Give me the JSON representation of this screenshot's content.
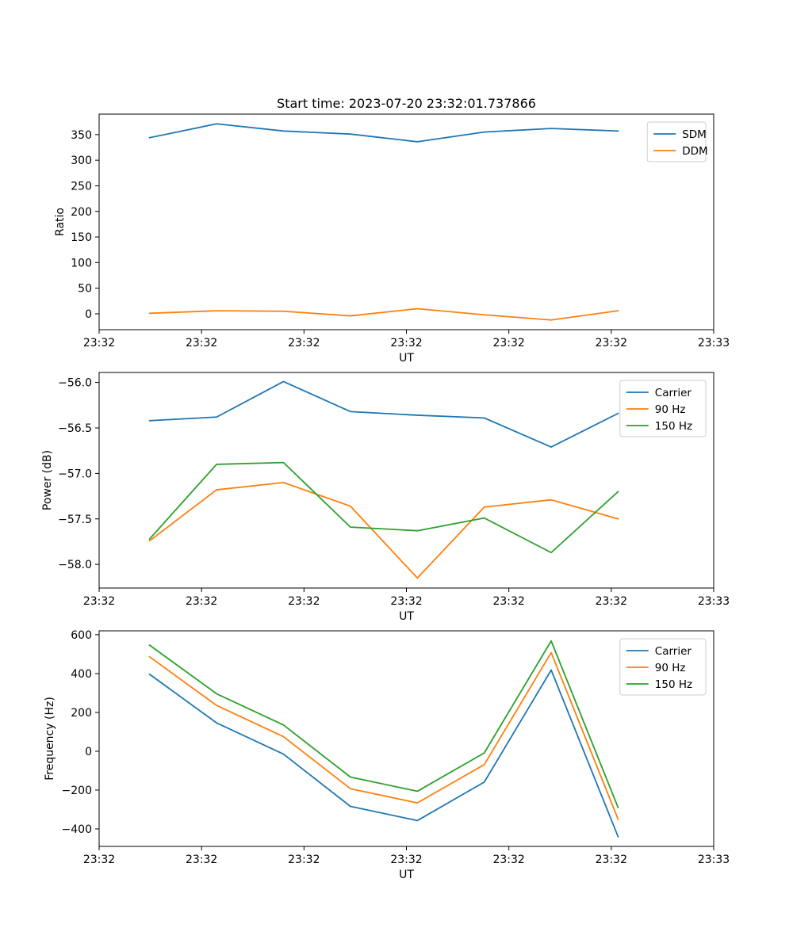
{
  "chart_data": [
    {
      "type": "line",
      "title": "Start time: 2023-07-20 23:32:01.737866",
      "xlabel": "UT",
      "ylabel": "Ratio",
      "xlim": [
        0,
        9
      ],
      "x_ticks": [
        0,
        1.5,
        3,
        4.5,
        6,
        7.5,
        9
      ],
      "x_tick_labels": [
        "23:32",
        "23:32",
        "23:32",
        "23:32",
        "23:32",
        "23:32",
        "23:33"
      ],
      "ylim": [
        -31,
        390
      ],
      "y_ticks": [
        0,
        50,
        100,
        150,
        200,
        250,
        300,
        350
      ],
      "y_tick_labels": [
        "0",
        "50",
        "100",
        "150",
        "200",
        "250",
        "300",
        "350"
      ],
      "x": [
        0.74,
        1.72,
        2.7,
        3.68,
        4.66,
        5.64,
        6.62,
        7.6
      ],
      "series": [
        {
          "name": "SDM",
          "color": "#1f77b4",
          "values": [
            344,
            371,
            357,
            351,
            336,
            355,
            362,
            357
          ]
        },
        {
          "name": "DDM",
          "color": "#ff7f0e",
          "values": [
            1,
            6,
            5,
            -4,
            10,
            -2,
            -12,
            6
          ]
        }
      ],
      "legend": "top-right",
      "grid": false
    },
    {
      "type": "line",
      "title": "",
      "xlabel": "UT",
      "ylabel": "Power (dB)",
      "xlim": [
        0,
        9
      ],
      "x_ticks": [
        0,
        1.5,
        3,
        4.5,
        6,
        7.5,
        9
      ],
      "x_tick_labels": [
        "23:32",
        "23:32",
        "23:32",
        "23:32",
        "23:32",
        "23:32",
        "23:33"
      ],
      "ylim": [
        -58.26,
        -55.89
      ],
      "y_ticks": [
        -58.0,
        -57.5,
        -57.0,
        -56.5,
        -56.0
      ],
      "y_tick_labels": [
        "−58.0",
        "−57.5",
        "−57.0",
        "−56.5",
        "−56.0"
      ],
      "x": [
        0.74,
        1.72,
        2.7,
        3.68,
        4.66,
        5.64,
        6.62,
        7.6
      ],
      "series": [
        {
          "name": "Carrier",
          "color": "#1f77b4",
          "values": [
            -56.42,
            -56.38,
            -55.99,
            -56.32,
            -56.36,
            -56.39,
            -56.71,
            -56.34
          ]
        },
        {
          "name": "90 Hz",
          "color": "#ff7f0e",
          "values": [
            -57.74,
            -57.18,
            -57.1,
            -57.36,
            -58.15,
            -57.37,
            -57.29,
            -57.5
          ]
        },
        {
          "name": "150 Hz",
          "color": "#2ca02c",
          "values": [
            -57.72,
            -56.9,
            -56.88,
            -57.59,
            -57.63,
            -57.49,
            -57.87,
            -57.2
          ]
        }
      ],
      "legend": "top-right",
      "grid": false
    },
    {
      "type": "line",
      "title": "",
      "xlabel": "UT",
      "ylabel": "Frequency (Hz)",
      "xlim": [
        0,
        9
      ],
      "x_ticks": [
        0,
        1.5,
        3,
        4.5,
        6,
        7.5,
        9
      ],
      "x_tick_labels": [
        "23:32",
        "23:32",
        "23:32",
        "23:32",
        "23:32",
        "23:32",
        "23:33"
      ],
      "ylim": [
        -490,
        620
      ],
      "y_ticks": [
        -400,
        -200,
        0,
        200,
        400,
        600
      ],
      "y_tick_labels": [
        "−400",
        "−200",
        "0",
        "200",
        "400",
        "600"
      ],
      "x": [
        0.74,
        1.72,
        2.7,
        3.68,
        4.66,
        5.64,
        6.62,
        7.6
      ],
      "series": [
        {
          "name": "Carrier",
          "color": "#1f77b4",
          "values": [
            396,
            146,
            -15,
            -284,
            -357,
            -159,
            418,
            -440
          ]
        },
        {
          "name": "90 Hz",
          "color": "#ff7f0e",
          "values": [
            486,
            236,
            75,
            -193,
            -266,
            -69,
            508,
            -350
          ]
        },
        {
          "name": "150 Hz",
          "color": "#2ca02c",
          "values": [
            546,
            296,
            135,
            -133,
            -206,
            -9,
            568,
            -290
          ]
        }
      ],
      "legend": "top-right",
      "grid": false
    }
  ]
}
